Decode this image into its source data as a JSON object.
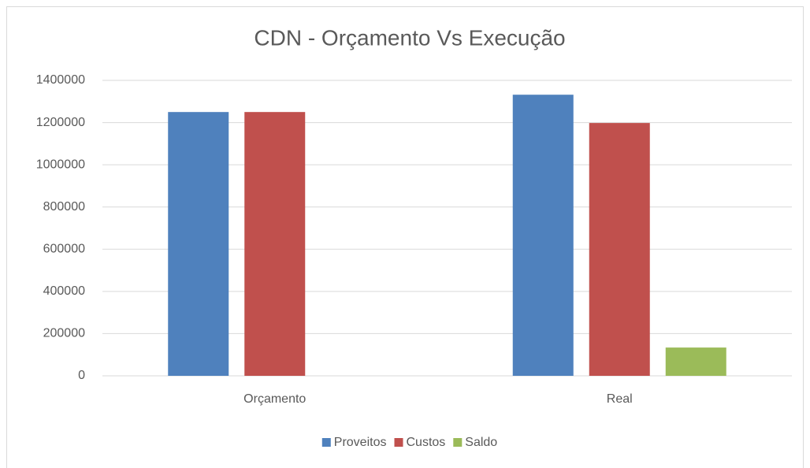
{
  "chart_data": {
    "type": "bar",
    "title": "CDN - Orçamento Vs Execução",
    "categories": [
      "Orçamento",
      "Real"
    ],
    "series": [
      {
        "name": "Proveitos",
        "color": "#4f81bd",
        "values": [
          1250000,
          1332000
        ]
      },
      {
        "name": "Custos",
        "color": "#c0504d",
        "values": [
          1250000,
          1198000
        ]
      },
      {
        "name": "Saldo",
        "color": "#9bbb59",
        "values": [
          0,
          134000
        ]
      }
    ],
    "ylim": [
      0,
      1400000
    ],
    "yticks": [
      0,
      200000,
      400000,
      600000,
      800000,
      1000000,
      1200000,
      1400000
    ],
    "grid": true,
    "legend": "bottom"
  }
}
